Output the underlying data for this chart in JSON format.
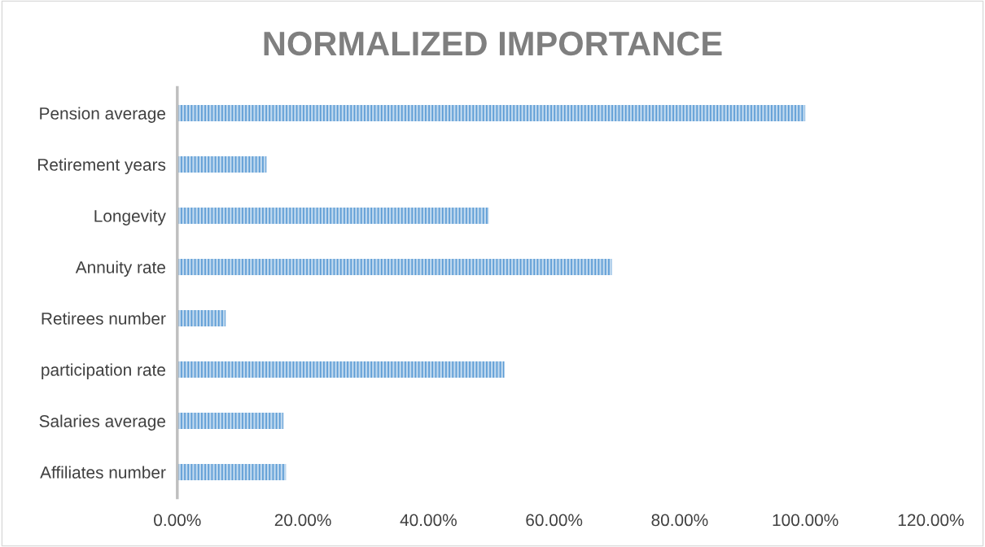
{
  "chart_data": {
    "type": "bar",
    "orientation": "horizontal",
    "title": "NORMALIZED IMPORTANCE",
    "categories": [
      "Pension average",
      "Retirement years",
      "Longevity",
      "Annuity rate",
      "Retirees number",
      "participation rate",
      "Salaries average",
      "Affiliates number"
    ],
    "values": [
      100,
      14.2,
      49.6,
      69.2,
      7.7,
      52.1,
      16.9,
      17.3
    ],
    "color": "#5b9bd5",
    "xlim": [
      0,
      120
    ],
    "xticks": [
      {
        "value": 0,
        "label": "0.00%"
      },
      {
        "value": 20,
        "label": "20.00%"
      },
      {
        "value": 40,
        "label": "40.00%"
      },
      {
        "value": 60,
        "label": "60.00%"
      },
      {
        "value": 80,
        "label": "80.00%"
      },
      {
        "value": 100,
        "label": "100.00%"
      },
      {
        "value": 120,
        "label": "120.00%"
      }
    ],
    "grid": false,
    "legend": false
  }
}
